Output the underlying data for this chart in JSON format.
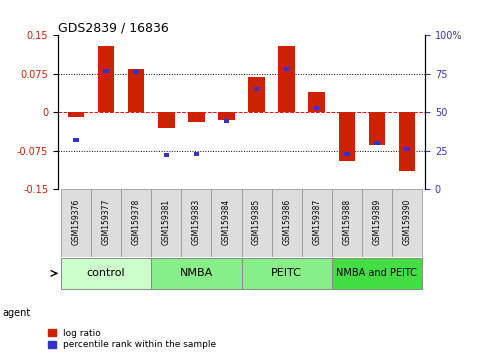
{
  "title": "GDS2839 / 16836",
  "samples": [
    "GSM159376",
    "GSM159377",
    "GSM159378",
    "GSM159381",
    "GSM159383",
    "GSM159384",
    "GSM159385",
    "GSM159386",
    "GSM159387",
    "GSM159388",
    "GSM159389",
    "GSM159390"
  ],
  "log_ratio": [
    -0.01,
    0.13,
    0.085,
    -0.03,
    -0.02,
    -0.015,
    0.068,
    0.13,
    0.04,
    -0.095,
    -0.065,
    -0.115
  ],
  "percentile_rank": [
    32,
    77,
    76,
    22,
    23,
    44,
    65,
    78,
    53,
    23,
    30,
    26
  ],
  "groups": [
    {
      "label": "control",
      "start": 0,
      "end": 3,
      "color": "#ccffcc"
    },
    {
      "label": "NMBA",
      "start": 3,
      "end": 6,
      "color": "#88ee88"
    },
    {
      "label": "PEITC",
      "start": 6,
      "end": 9,
      "color": "#88ee88"
    },
    {
      "label": "NMBA and PEITC",
      "start": 9,
      "end": 12,
      "color": "#44dd44"
    }
  ],
  "ylim": [
    -0.15,
    0.15
  ],
  "yticks_left": [
    -0.15,
    -0.075,
    0,
    0.075,
    0.15
  ],
  "yticks_right": [
    0,
    25,
    50,
    75,
    100
  ],
  "hlines_dotted": [
    0.075,
    -0.075
  ],
  "hline_dashed": 0,
  "bar_color_red": "#cc2200",
  "bar_color_blue": "#3333cc",
  "legend_red": "log ratio",
  "legend_blue": "percentile rank within the sample",
  "red_bar_width": 0.55,
  "blue_bar_width": 0.18,
  "blue_bar_height": 0.008,
  "group_label_fontsize": 8,
  "nmba_peitc_fontsize": 7
}
